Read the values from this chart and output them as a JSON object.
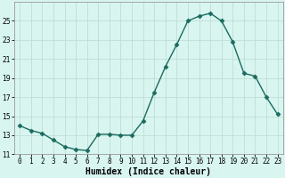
{
  "x": [
    0,
    1,
    2,
    3,
    4,
    5,
    6,
    7,
    8,
    9,
    10,
    11,
    12,
    13,
    14,
    15,
    16,
    17,
    18,
    19,
    20,
    21,
    22,
    23
  ],
  "y": [
    14.0,
    13.5,
    13.2,
    12.5,
    11.8,
    11.5,
    11.4,
    13.1,
    13.1,
    13.0,
    13.0,
    14.5,
    17.5,
    20.2,
    22.5,
    25.0,
    25.5,
    25.8,
    25.0,
    22.8,
    19.5,
    19.2,
    17.0,
    15.2
  ],
  "line_color": "#1a6b5e",
  "marker": "D",
  "marker_size": 2.5,
  "bg_color": "#d8f5f0",
  "grid_color": "#c0ddd8",
  "xlabel": "Humidex (Indice chaleur)",
  "xlim": [
    -0.5,
    23.5
  ],
  "ylim": [
    11,
    27
  ],
  "yticks": [
    11,
    13,
    15,
    17,
    19,
    21,
    23,
    25
  ],
  "tick_fontsize": 5.5,
  "label_fontsize": 7.0,
  "linewidth": 1.0
}
